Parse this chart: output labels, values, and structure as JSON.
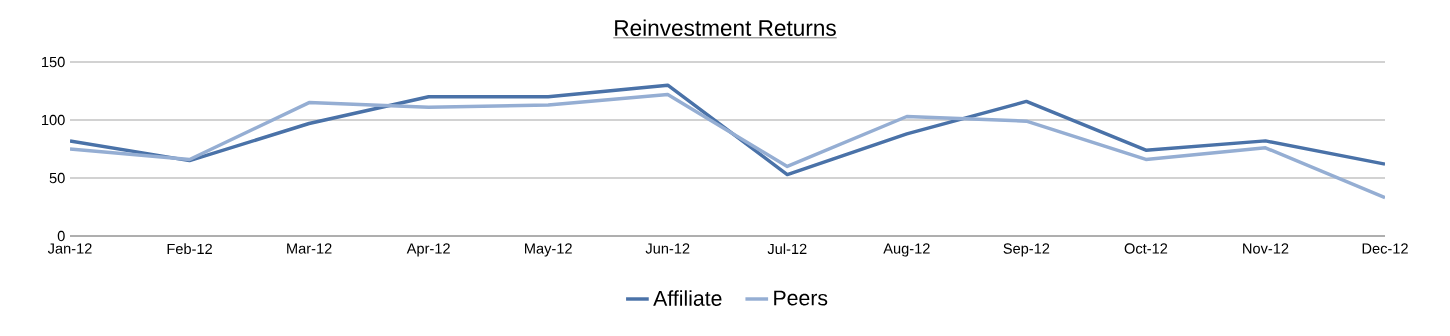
{
  "chart_data": {
    "type": "line",
    "title": "Reinvestment Returns",
    "categories": [
      "Jan-12",
      "Feb-12",
      "Mar-12",
      "Apr-12",
      "May-12",
      "Jun-12",
      "Jul-12",
      "Aug-12",
      "Sep-12",
      "Oct-12",
      "Nov-12",
      "Dec-12"
    ],
    "series": [
      {
        "name": "Affiliate",
        "color": "#4a72a8",
        "values": [
          82,
          65,
          97,
          120,
          120,
          130,
          53,
          88,
          116,
          74,
          82,
          62
        ]
      },
      {
        "name": "Peers",
        "color": "#95aed3",
        "values": [
          75,
          66,
          115,
          111,
          113,
          122,
          60,
          103,
          99,
          66,
          76,
          33
        ]
      }
    ],
    "ylim": [
      0,
      150
    ],
    "yticks": [
      0,
      50,
      100,
      150
    ],
    "grid": "y",
    "legend": "bottom",
    "marker": "none",
    "line_style": "solid"
  }
}
